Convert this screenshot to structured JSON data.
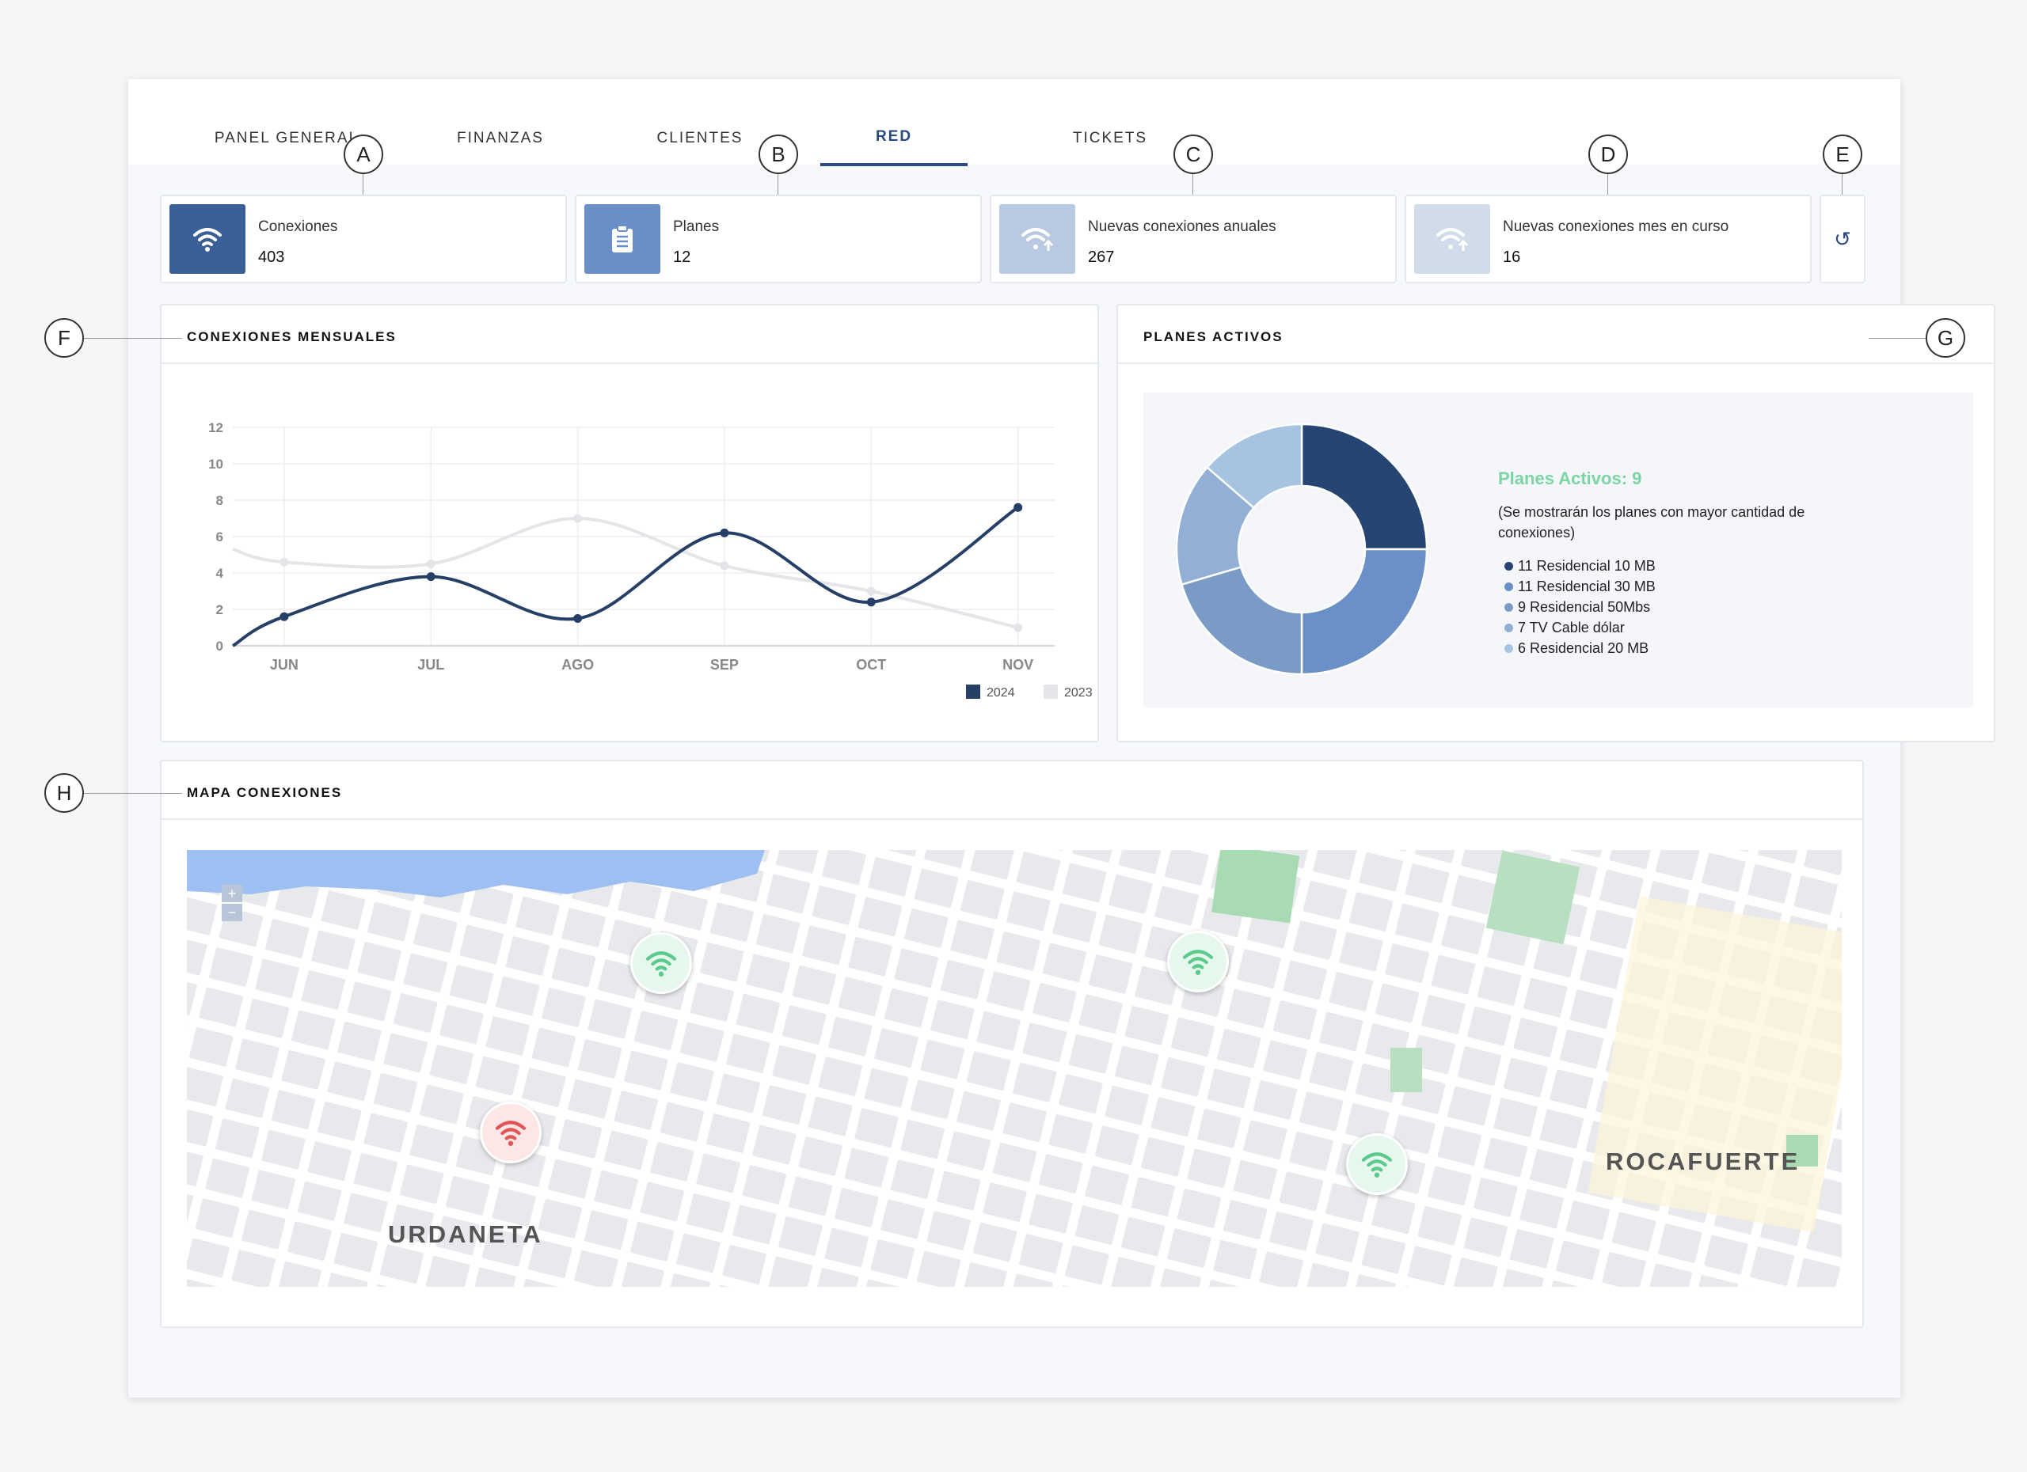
{
  "tabs": [
    {
      "label": "PANEL GENERAL"
    },
    {
      "label": "FINANZAS"
    },
    {
      "label": "CLIENTES"
    },
    {
      "label": "RED"
    },
    {
      "label": "TICKETS"
    }
  ],
  "active_tab": "RED",
  "callouts": [
    "A",
    "B",
    "C",
    "D",
    "E",
    "F",
    "G",
    "H"
  ],
  "kpis": [
    {
      "label": "Conexiones",
      "value": "403",
      "icon": "wifi-icon",
      "color": "#3a5f98"
    },
    {
      "label": "Planes",
      "value": "12",
      "icon": "clipboard-icon",
      "color": "#6a8ec8"
    },
    {
      "label": "Nuevas conexiones anuales",
      "value": "267",
      "icon": "wifi-up-icon",
      "color": "#b9c9e1"
    },
    {
      "label": "Nuevas conexiones mes en curso",
      "value": "16",
      "icon": "wifi-up-icon",
      "color": "#d1dcea"
    }
  ],
  "refresh_icon": "↺",
  "line_card": {
    "title": "CONEXIONES MENSUALES"
  },
  "plans_card": {
    "title": "PLANES ACTIVOS",
    "summary": "Planes Activos: 9",
    "note": "(Se mostrarán los planes con mayor cantidad de conexiones)",
    "summary_color": "#7bd4a2",
    "legend": [
      {
        "label": "11 Residencial 10 MB",
        "value": 11,
        "color": "#264572"
      },
      {
        "label": "11 Residencial 30 MB",
        "value": 11,
        "color": "#6b8fc7"
      },
      {
        "label": "9 Residencial 50Mbs",
        "value": 9,
        "color": "#7b9bc7"
      },
      {
        "label": "7 TV Cable dólar",
        "value": 7,
        "color": "#92b0d6"
      },
      {
        "label": "6 Residencial 20 MB",
        "value": 6,
        "color": "#a6c3e2"
      }
    ]
  },
  "map_card": {
    "title": "MAPA CONEXIONES",
    "zoom_in": "+",
    "zoom_out": "−",
    "labels": [
      "URDANETA",
      "ROCAFUERTE"
    ],
    "pins": [
      {
        "status": "online",
        "color": "#e6f7ee",
        "icon_color": "#5cc98d"
      },
      {
        "status": "online",
        "color": "#e6f7ee",
        "icon_color": "#5cc98d"
      },
      {
        "status": "offline",
        "color": "#fde6e6",
        "icon_color": "#e25555"
      },
      {
        "status": "online",
        "color": "#e6f7ee",
        "icon_color": "#5cc98d"
      }
    ]
  },
  "chart_data": {
    "type": "line",
    "categories": [
      "JUN",
      "JUL",
      "AGO",
      "SEP",
      "OCT",
      "NOV"
    ],
    "x": [
      0,
      0.35,
      1.35,
      2.35,
      3.35,
      4.35,
      5.35
    ],
    "ylim": [
      0,
      12
    ],
    "yticks": [
      0,
      2,
      4,
      6,
      8,
      10,
      12
    ],
    "series": [
      {
        "name": "2024",
        "color": "#263f67",
        "x": [
          0,
          0.35,
          1.35,
          2.35,
          3.35,
          4.35,
          5.35
        ],
        "values": [
          0,
          1.6,
          3.8,
          1.5,
          6.2,
          2.4,
          7.6
        ]
      },
      {
        "name": "2023",
        "color": "#e3e5e8",
        "x": [
          0,
          0.35,
          1.35,
          2.35,
          3.35,
          4.35,
          5.35
        ],
        "values": [
          5.3,
          4.6,
          4.5,
          7.0,
          4.4,
          3.0,
          1.0
        ]
      }
    ],
    "legend_position": "bottom-right",
    "grid": true
  }
}
